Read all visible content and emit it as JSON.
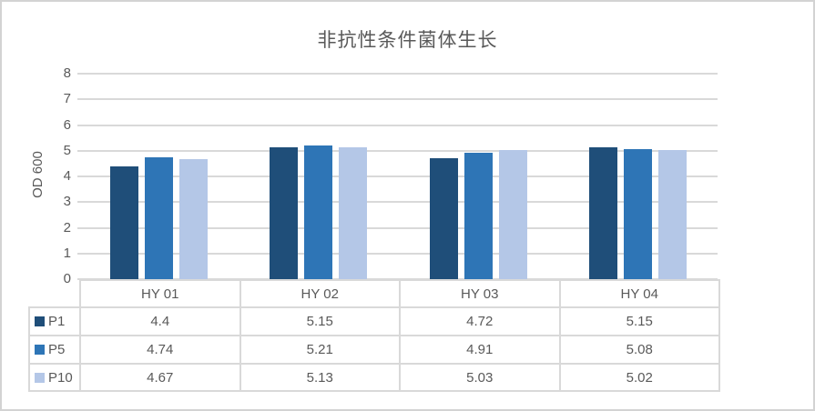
{
  "chart_data": {
    "type": "bar",
    "title": "非抗性条件菌体生长",
    "ylabel": "OD 600",
    "xlabel": "",
    "categories": [
      "HY 01",
      "HY 02",
      "HY 03",
      "HY 04"
    ],
    "series": [
      {
        "name": "P1",
        "color": "#1F4E79",
        "values": [
          4.4,
          5.15,
          4.72,
          5.15
        ]
      },
      {
        "name": "P5",
        "color": "#2E75B6",
        "values": [
          4.74,
          5.21,
          4.91,
          5.08
        ]
      },
      {
        "name": "P10",
        "color": "#B4C7E7",
        "values": [
          4.67,
          5.13,
          5.03,
          5.02
        ]
      }
    ],
    "ylim": [
      0,
      8
    ],
    "ytick_step": 1,
    "grid": true,
    "legend_position": "table-left",
    "data_table_shown": true
  },
  "colors": {
    "gridline": "#D9D9D9",
    "table_border": "#D9D9D9",
    "frame_border": "#D3D3D3",
    "text": "#595959",
    "background": "#FFFFFF"
  }
}
